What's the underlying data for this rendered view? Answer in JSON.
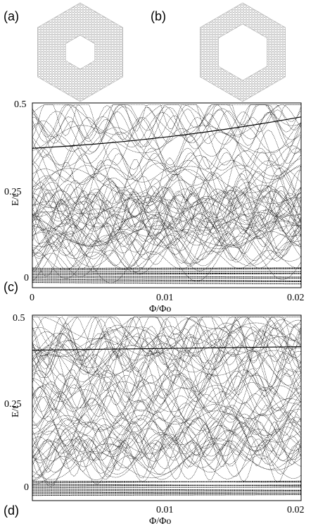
{
  "panels": {
    "a": {
      "label": "(a)"
    },
    "b": {
      "label": "(b)"
    },
    "c": {
      "label": "(c)"
    },
    "d": {
      "label": "(d)"
    }
  },
  "lattices": [
    {
      "panel": "a",
      "hole": "small hexagonal hole"
    },
    {
      "panel": "b",
      "hole": "large hexagonal hole"
    }
  ],
  "chart_data": [
    {
      "panel": "c",
      "type": "line",
      "xlabel": "Φ/Φo",
      "ylabel": "E/t",
      "xlim": [
        0,
        0.02
      ],
      "ylim": [
        -0.03,
        0.5
      ],
      "x_ticks": [
        "0",
        "0.01",
        "0.02"
      ],
      "y_ticks": [
        "0",
        "0.25",
        "0.5"
      ],
      "grid": false,
      "description_of_series": "many energy levels oscillating with flux; dense band near E/t = 0; upper band edge rising from about 0.37 to 0.46"
    },
    {
      "panel": "d",
      "type": "line",
      "xlabel": "Φ/Φo",
      "ylabel": "E/t",
      "xlim": [
        0,
        0.02
      ],
      "ylim": [
        -0.03,
        0.5
      ],
      "x_ticks": [
        "0.01",
        "0.02"
      ],
      "y_ticks": [
        "0",
        "0.25",
        "0.5"
      ],
      "grid": false,
      "description_of_series": "many energy levels oscillating with flux; dense band near E/t = 0; flat level near 0.40; dense region above 0.43"
    }
  ]
}
